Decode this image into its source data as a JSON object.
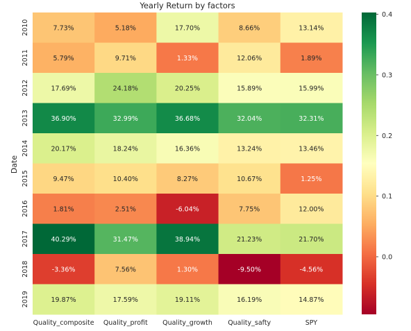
{
  "chart_data": {
    "type": "heatmap",
    "title": "Yearly Return by factors",
    "ylabel": "Date",
    "xlabel": "",
    "x_categories": [
      "Quality_composite",
      "Quality_profit",
      "Quality_growth",
      "Quality_safty",
      "SPY"
    ],
    "y_categories": [
      "2010",
      "2011",
      "2012",
      "2013",
      "2014",
      "2015",
      "2016",
      "2017",
      "2018",
      "2019"
    ],
    "values": [
      [
        0.0773,
        0.0518,
        0.177,
        0.0866,
        0.1314
      ],
      [
        0.0579,
        0.0971,
        0.0133,
        0.1206,
        0.0189
      ],
      [
        0.1769,
        0.2418,
        0.2025,
        0.1589,
        0.1599
      ],
      [
        0.369,
        0.3299,
        0.3668,
        0.3204,
        0.3231
      ],
      [
        0.2017,
        0.1824,
        0.1636,
        0.1324,
        0.1346
      ],
      [
        0.0947,
        0.104,
        0.0827,
        0.1067,
        0.0125
      ],
      [
        0.0181,
        0.0251,
        -0.0604,
        0.0775,
        0.12
      ],
      [
        0.4029,
        0.3147,
        0.3894,
        0.2123,
        0.217
      ],
      [
        -0.0336,
        0.0756,
        0.013,
        -0.095,
        -0.0456
      ],
      [
        0.1987,
        0.1759,
        0.1911,
        0.1619,
        0.1487
      ]
    ],
    "labels": [
      [
        "7.73%",
        "5.18%",
        "17.70%",
        "8.66%",
        "13.14%"
      ],
      [
        "5.79%",
        "9.71%",
        "1.33%",
        "12.06%",
        "1.89%"
      ],
      [
        "17.69%",
        "24.18%",
        "20.25%",
        "15.89%",
        "15.99%"
      ],
      [
        "36.90%",
        "32.99%",
        "36.68%",
        "32.04%",
        "32.31%"
      ],
      [
        "20.17%",
        "18.24%",
        "16.36%",
        "13.24%",
        "13.46%"
      ],
      [
        "9.47%",
        "10.40%",
        "8.27%",
        "10.67%",
        "1.25%"
      ],
      [
        "1.81%",
        "2.51%",
        "-6.04%",
        "7.75%",
        "12.00%"
      ],
      [
        "40.29%",
        "31.47%",
        "38.94%",
        "21.23%",
        "21.70%"
      ],
      [
        "-3.36%",
        "7.56%",
        "1.30%",
        "-9.50%",
        "-4.56%"
      ],
      [
        "19.87%",
        "17.59%",
        "19.11%",
        "16.19%",
        "14.87%"
      ]
    ],
    "colormap": "RdYlGn",
    "colorbar": {
      "ticks": [
        0.0,
        0.1,
        0.2,
        0.3,
        0.4
      ],
      "tick_labels": [
        "0.0",
        "0.1",
        "0.2",
        "0.3",
        "0.4"
      ],
      "range": [
        -0.095,
        0.4029
      ]
    }
  }
}
